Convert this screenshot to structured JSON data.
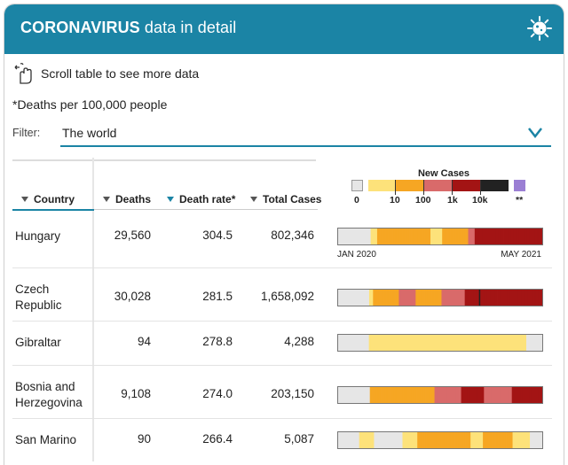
{
  "header": {
    "title_bold": "CORONAVIRUS",
    "title_rest": " data in detail",
    "icon": "virus-icon"
  },
  "scroll_hint": {
    "icon": "swipe-hand-icon",
    "text": "Scroll table to see more data"
  },
  "footnote": "*Deaths per 100,000 people",
  "filter": {
    "label": "Filter:",
    "value": "The world",
    "icon": "chevron-down-icon"
  },
  "columns": {
    "country": "Country",
    "deaths": "Deaths",
    "death_rate": "Death rate*",
    "total_cases": "Total Cases"
  },
  "legend": {
    "title": "New Cases",
    "labels": [
      "0",
      "10",
      "100",
      "1k",
      "10k",
      "**"
    ],
    "colors": {
      "none": "#e6e6e6",
      "low": "#fde27a",
      "mid": "#f6a623",
      "high": "#d96a6a",
      "vhigh": "#a31414",
      "top": "#222222",
      "na": "#9b7fd4"
    }
  },
  "timeline": {
    "start": "JAN 2020",
    "end": "MAY 2021"
  },
  "rows": [
    {
      "country": "Hungary",
      "deaths": "29,560",
      "death_rate": "304.5",
      "total_cases": "802,346",
      "strip": "nnnnnnnnnnnnnnnnnnnnnnnnnlllllmmmmmmmmmmmmmmmmmmmmmmmmmmmmmmmmmmmmmmmmmlllllllllmmmmmmmmmmmmmmmmmmmmhhhhhvvvvvvvvvvvvvvvvvvvvvvvvvvvvvvvvvvvvvvvvvvvvvvvvvvvv"
    },
    {
      "country": "Czech\nRepublic",
      "deaths": "30,028",
      "death_rate": "281.5",
      "total_cases": "1,658,092",
      "strip": "nnnnnnnnnnnnnnnnnnnnnnnnlllmmmmmmmmmmmmmmmmmmmmhhhhhhhhhhhhhmmmmmmmmmmmmmmmmmmmmhhhhhhhhhhhhhhhhhhvvvvvvvvvvvtvvvvvvvvvvvvvvvvvvvvvvvvvvvvvvvvvvvvvvvvvvvvvvvv"
    },
    {
      "country": "Gibraltar",
      "deaths": "94",
      "death_rate": "278.8",
      "total_cases": "4,288",
      "strip": "nnnnnnnnnnnnnnnnnnnnnnnnnllllllllllllllllllllllllllllllllllllllllllllllllllllllllllllllllllllllllllllllllllllllllllllllllllllllllllllllllllllllllllllllllnnnnnnnnnnnnn"
    },
    {
      "country": "Bosnia and\nHerzegovina",
      "deaths": "9,108",
      "death_rate": "274.0",
      "total_cases": "203,150",
      "strip": "nnnnnnnnnnnnnnnnnnnnnnnnnmmmmmmmmmmmmmmmmmmmmmmmmmmmmmmmmmmmmmmmmmmmmmmmmmmmhhhhhhhhhhhhhhhhhhhhhvvvvvvvvvvvvvvvvvvhhhhhhhhhhhhhhhhhhhhhhvvvvvvvvvvvvvvvvvvvvvvvv"
    },
    {
      "country": "San Marino",
      "deaths": "90",
      "death_rate": "266.4",
      "total_cases": "5,087",
      "strip": "nnnnnnnnnnnnnnnnnllllllllllllnnnnnnnnnnnnnnnnnnnnnnnllllllllllllmmmmmmmmmmmmmmmmmmmmmmmmmmmmmmmmmmmmmmmmmmmllllllllllmmmmmmmmmmmmmmmmmmmmmmmmllllllllllllllnnnnnnnnnn"
    }
  ]
}
